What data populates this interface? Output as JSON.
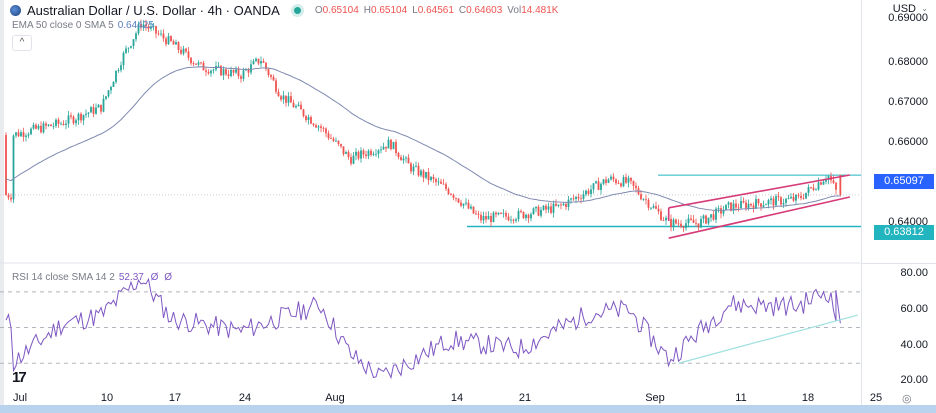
{
  "header": {
    "symbol_title": "Australian Dollar / U.S. Dollar · 4h · OANDA",
    "market_status": "open",
    "ohlc": {
      "open_label": "O",
      "open": "0.65104",
      "high_label": "H",
      "high": "0.65104",
      "low_label": "L",
      "low": "0.64561",
      "close_label": "C",
      "close": "0.64603",
      "vol_label": "Vol",
      "vol": "14.481K"
    }
  },
  "indicators": {
    "ema": {
      "label": "EMA 50 close 0 SMA 5",
      "value": "0.64425"
    },
    "rsi": {
      "label": "RSI 14 close SMA 14 2",
      "value": "52.37",
      "extra1": "Ø",
      "extra2": "Ø"
    },
    "collapse_icon": "^"
  },
  "price_axis": {
    "currency": "USD",
    "ticks": [
      "0.69000",
      "0.68000",
      "0.67000",
      "0.66000",
      "0.64000"
    ],
    "labels": [
      {
        "value": "0.65097",
        "color": "#2962ff"
      },
      {
        "value": "0.63812",
        "color": "#22b5bf"
      }
    ]
  },
  "rsi_axis": {
    "ticks": [
      "80.00",
      "60.00",
      "40.00",
      "20.00"
    ]
  },
  "time_axis": {
    "ticks": [
      "Jul",
      "10",
      "17",
      "24",
      "Aug",
      "14",
      "21",
      "Sep",
      "11",
      "18",
      "25"
    ]
  },
  "colors": {
    "up": "#26a69a",
    "down": "#ef5350",
    "ema": "#7f8ab0",
    "channel": "#d63b78",
    "resistance": "#22b5bf",
    "rsi": "#7e57c2",
    "rsi_trend": "#9fe0df"
  },
  "chart_data": {
    "type": "candlestick",
    "title": "Australian Dollar / U.S. Dollar · 4h · OANDA",
    "x_range": [
      "Jul",
      "25 Sep"
    ],
    "ylim": [
      0.634,
      0.692
    ],
    "approx_close_path": [
      {
        "date": "Jul 1",
        "close": 0.661
      },
      {
        "date": "Jul 6",
        "close": 0.664
      },
      {
        "date": "Jul 10",
        "close": 0.668
      },
      {
        "date": "Jul 12",
        "close": 0.68
      },
      {
        "date": "Jul 14",
        "close": 0.689
      },
      {
        "date": "Jul 17",
        "close": 0.684
      },
      {
        "date": "Jul 20",
        "close": 0.678
      },
      {
        "date": "Jul 24",
        "close": 0.676
      },
      {
        "date": "Jul 26",
        "close": 0.68
      },
      {
        "date": "Jul 28",
        "close": 0.671
      },
      {
        "date": "Aug 1",
        "close": 0.663
      },
      {
        "date": "Aug 4",
        "close": 0.655
      },
      {
        "date": "Aug 8",
        "close": 0.659
      },
      {
        "date": "Aug 10",
        "close": 0.653
      },
      {
        "date": "Aug 14",
        "close": 0.647
      },
      {
        "date": "Aug 17",
        "close": 0.64
      },
      {
        "date": "Aug 21",
        "close": 0.641
      },
      {
        "date": "Aug 25",
        "close": 0.643
      },
      {
        "date": "Aug 30",
        "close": 0.65
      },
      {
        "date": "Sep 1",
        "close": 0.649
      },
      {
        "date": "Sep 5",
        "close": 0.639
      },
      {
        "date": "Sep 8",
        "close": 0.639
      },
      {
        "date": "Sep 11",
        "close": 0.643
      },
      {
        "date": "Sep 14",
        "close": 0.644
      },
      {
        "date": "Sep 18",
        "close": 0.645
      },
      {
        "date": "Sep 21",
        "close": 0.651
      },
      {
        "date": "Sep 22",
        "close": 0.646
      }
    ],
    "ema50_last": 0.64425,
    "last_ohlc": {
      "open": 0.65104,
      "high": 0.65104,
      "low": 0.64561,
      "close": 0.64603,
      "volume": "14.481K"
    },
    "horizontal_levels": [
      0.65097,
      0.63812
    ],
    "ascending_channel": {
      "from": "Sep 5",
      "to": "Sep 22",
      "upper": [
        0.6428,
        0.651
      ],
      "lower": [
        0.6352,
        0.6455
      ]
    },
    "rsi": {
      "period": 14,
      "value": 52.37,
      "ylim": [
        15,
        85
      ],
      "bands": [
        70,
        50,
        30
      ],
      "approx_path": [
        {
          "date": "Jul 1",
          "v": 30
        },
        {
          "date": "Jul 6",
          "v": 52
        },
        {
          "date": "Jul 10",
          "v": 57
        },
        {
          "date": "Jul 14",
          "v": 78
        },
        {
          "date": "Jul 17",
          "v": 55
        },
        {
          "date": "Jul 24",
          "v": 48
        },
        {
          "date": "Aug 1",
          "v": 63
        },
        {
          "date": "Aug 4",
          "v": 35
        },
        {
          "date": "Aug 7",
          "v": 22
        },
        {
          "date": "Aug 14",
          "v": 43
        },
        {
          "date": "Aug 21",
          "v": 38
        },
        {
          "date": "Aug 28",
          "v": 58
        },
        {
          "date": "Sep 1",
          "v": 60
        },
        {
          "date": "Sep 5",
          "v": 32
        },
        {
          "date": "Sep 11",
          "v": 63
        },
        {
          "date": "Sep 18",
          "v": 62
        },
        {
          "date": "Sep 21",
          "v": 71
        },
        {
          "date": "Sep 22",
          "v": 52.37
        }
      ],
      "trendline": {
        "from": [
          "Sep 6",
          30
        ],
        "to": [
          "Sep 24",
          57
        ]
      }
    },
    "xlabel": "",
    "ylabel": "USD"
  }
}
